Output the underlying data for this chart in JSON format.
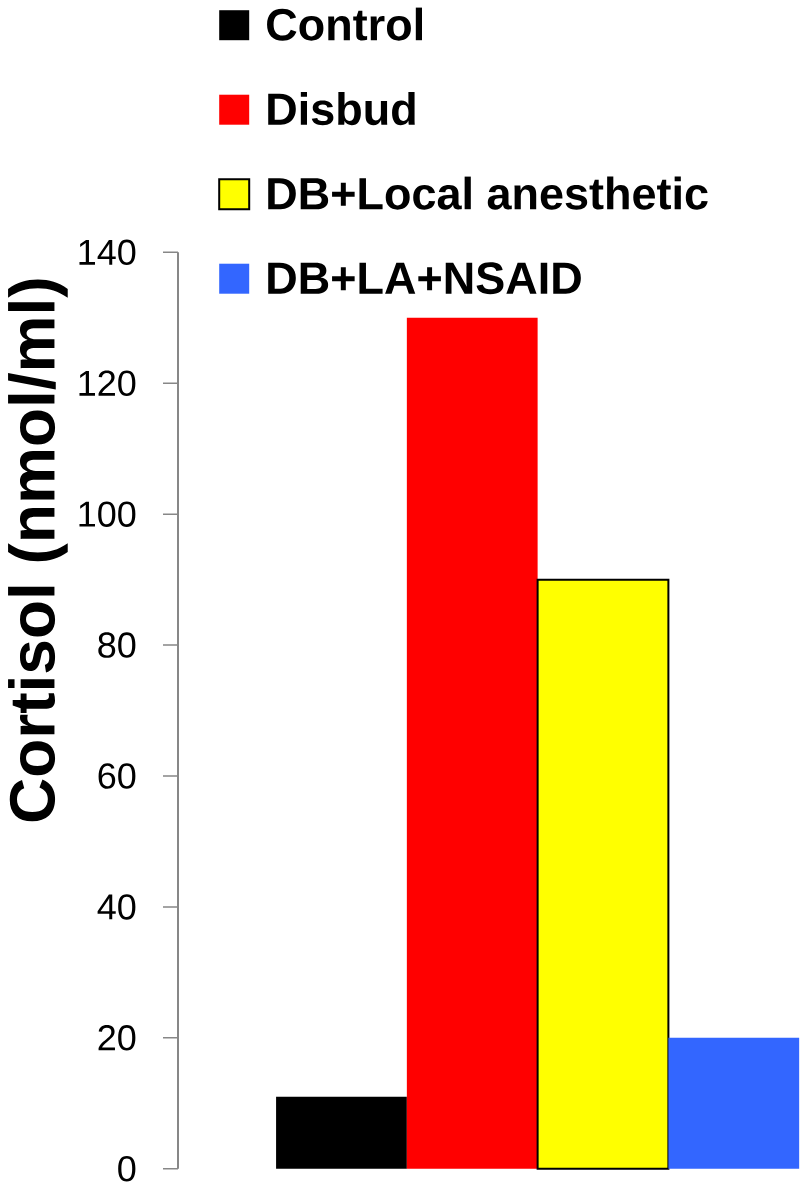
{
  "chart_data": {
    "type": "bar",
    "ylabel": "Cortisol (nmol/ml)",
    "categories": [
      null
    ],
    "series": [
      {
        "name": "Control",
        "color": "#000000",
        "values": [
          11
        ]
      },
      {
        "name": "Disbud",
        "color": "#ff0000",
        "values": [
          130
        ]
      },
      {
        "name": "DB+Local anesthetic",
        "color": "#ffff00",
        "values": [
          90
        ]
      },
      {
        "name": "DB+LA+NSAID",
        "color": "#3366ff",
        "values": [
          20
        ]
      }
    ],
    "ylim": [
      0,
      140
    ],
    "yticks": [
      0,
      20,
      40,
      60,
      80,
      100,
      120,
      140
    ],
    "legend": "top",
    "grid": false
  }
}
